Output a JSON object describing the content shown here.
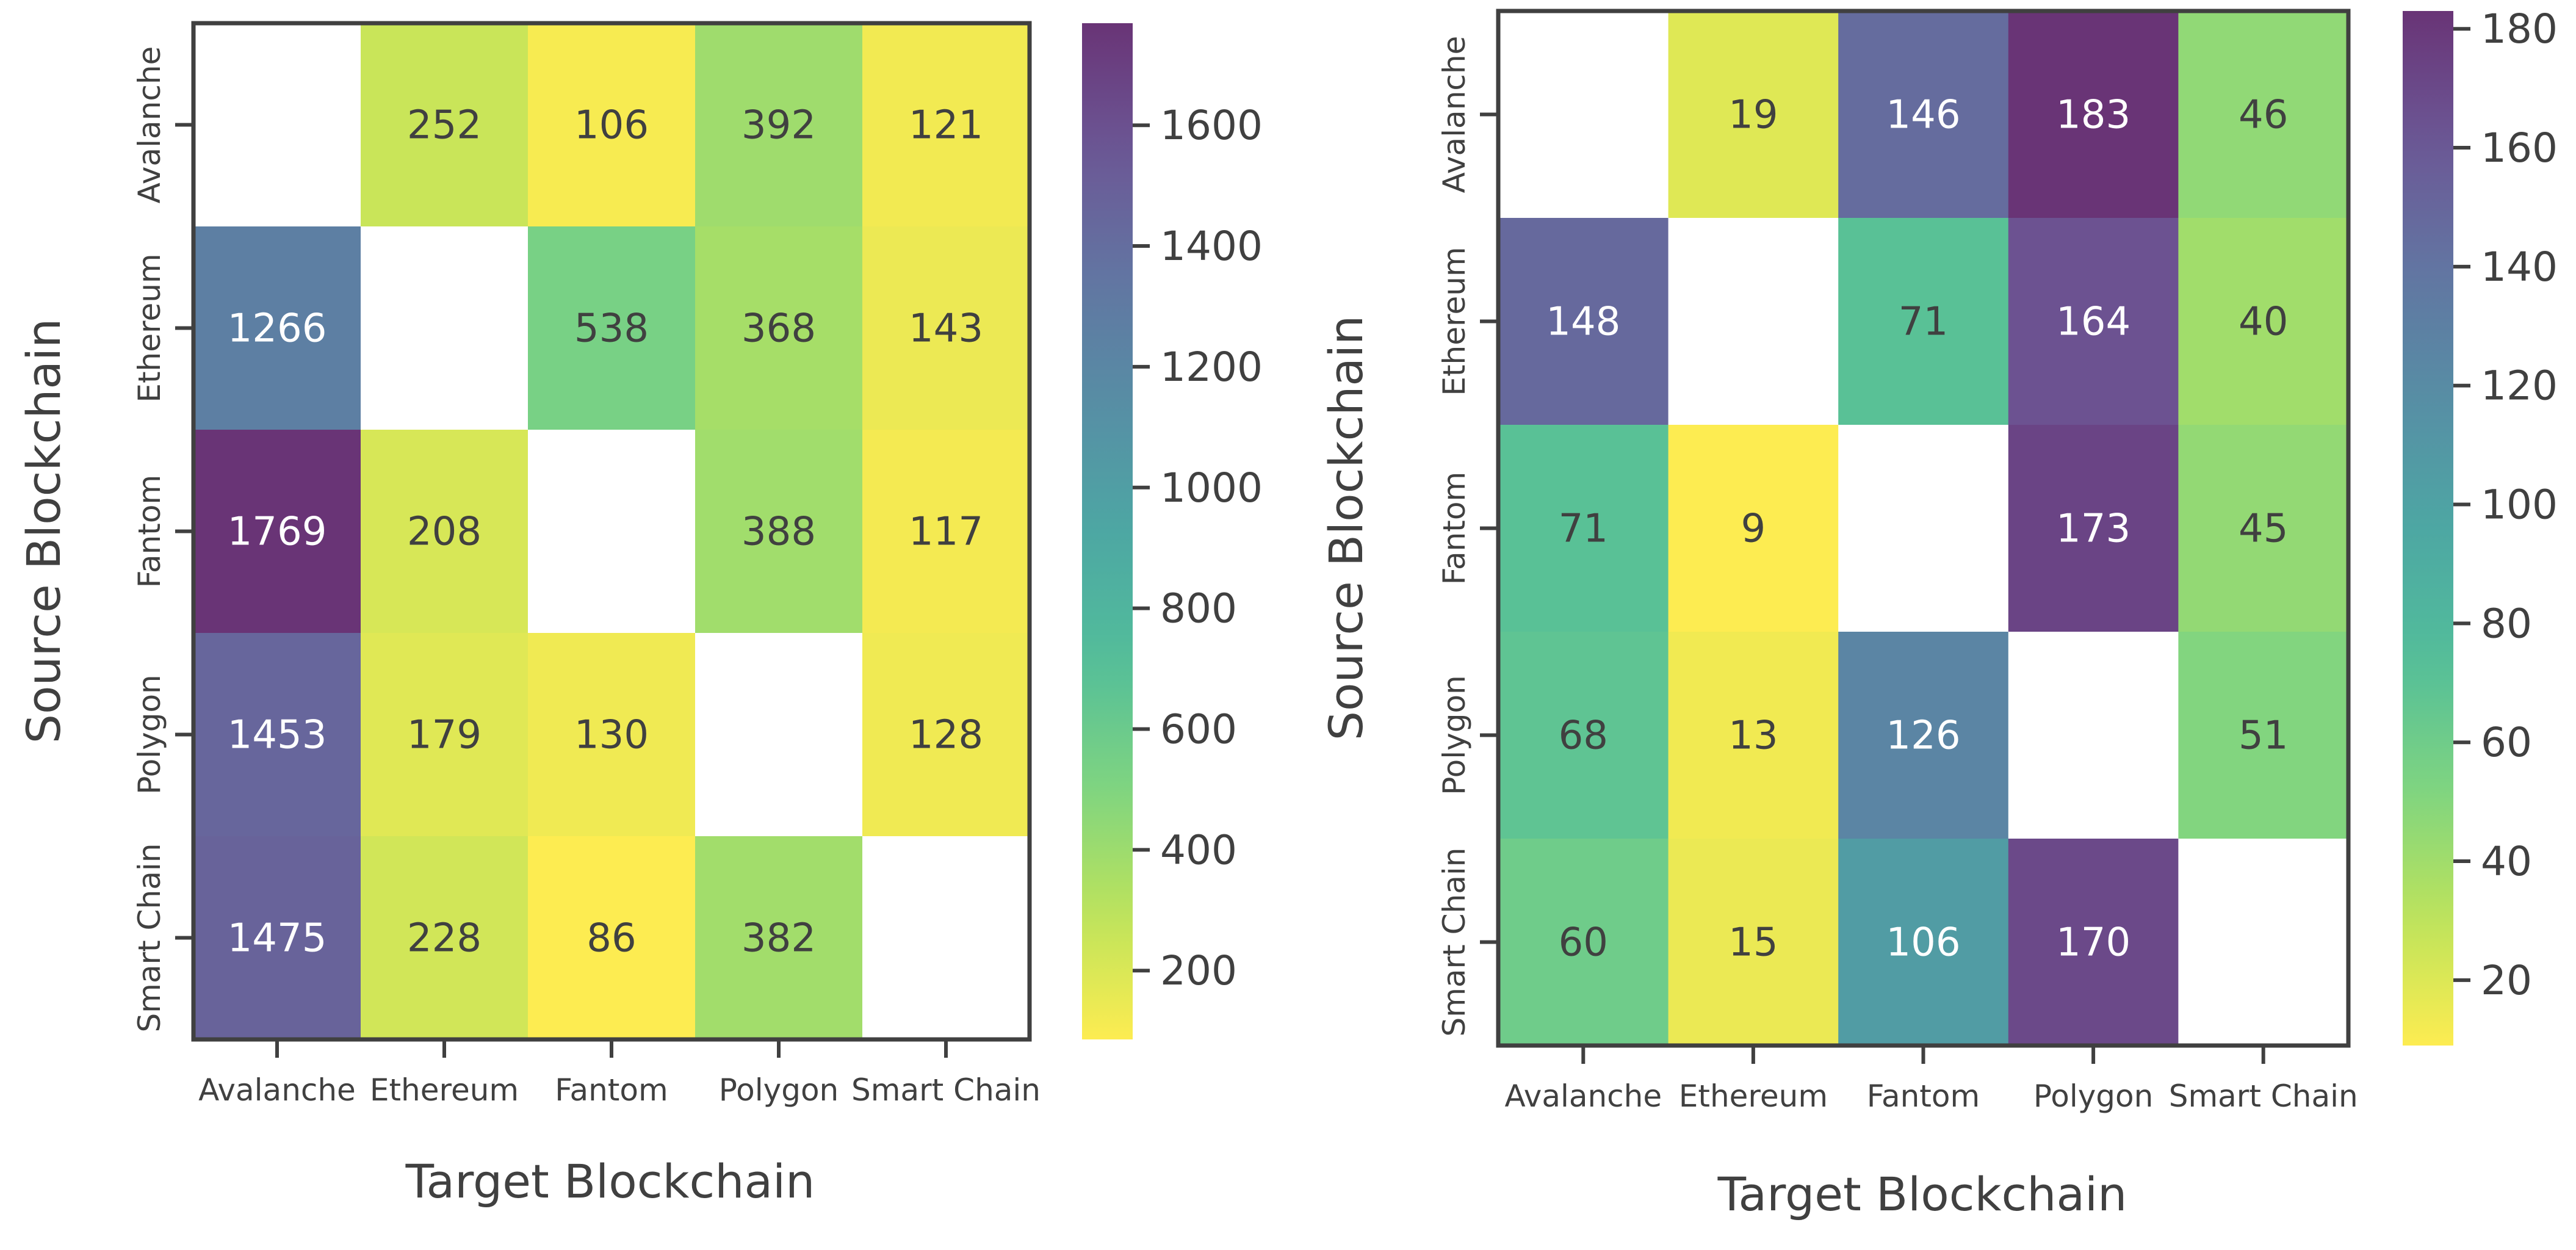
{
  "chart_data": [
    {
      "type": "heatmap",
      "title": "",
      "xlabel": "Target Blockchain",
      "ylabel": "Source Blockchain",
      "x_categories": [
        "Avalanche",
        "Ethereum",
        "Fantom",
        "Polygon",
        "Smart Chain"
      ],
      "y_categories": [
        "Avalanche",
        "Ethereum",
        "Fantom",
        "Polygon",
        "Smart Chain"
      ],
      "values": [
        [
          null,
          252,
          106,
          392,
          121
        ],
        [
          1266,
          null,
          538,
          368,
          143
        ],
        [
          1769,
          208,
          null,
          388,
          117
        ],
        [
          1453,
          179,
          130,
          null,
          128
        ],
        [
          1475,
          228,
          86,
          382,
          null
        ]
      ],
      "colorbar": {
        "vmin": 86,
        "vmax": 1769,
        "ticks": [
          200,
          400,
          600,
          800,
          1000,
          1200,
          1400,
          1600
        ]
      },
      "colormap": "viridis_r",
      "missing_color": "#ffffff"
    },
    {
      "type": "heatmap",
      "title": "",
      "xlabel": "Target Blockchain",
      "ylabel": "Source Blockchain",
      "x_categories": [
        "Avalanche",
        "Ethereum",
        "Fantom",
        "Polygon",
        "Smart Chain"
      ],
      "y_categories": [
        "Avalanche",
        "Ethereum",
        "Fantom",
        "Polygon",
        "Smart Chain"
      ],
      "values": [
        [
          null,
          19,
          146,
          183,
          46
        ],
        [
          148,
          null,
          71,
          164,
          40
        ],
        [
          71,
          9,
          null,
          173,
          45
        ],
        [
          68,
          13,
          126,
          null,
          51
        ],
        [
          60,
          15,
          106,
          170,
          null
        ]
      ],
      "colorbar": {
        "vmin": 9,
        "vmax": 183,
        "ticks": [
          20,
          40,
          60,
          80,
          100,
          120,
          140,
          160,
          180
        ]
      },
      "colormap": "viridis_r",
      "missing_color": "#ffffff"
    }
  ]
}
